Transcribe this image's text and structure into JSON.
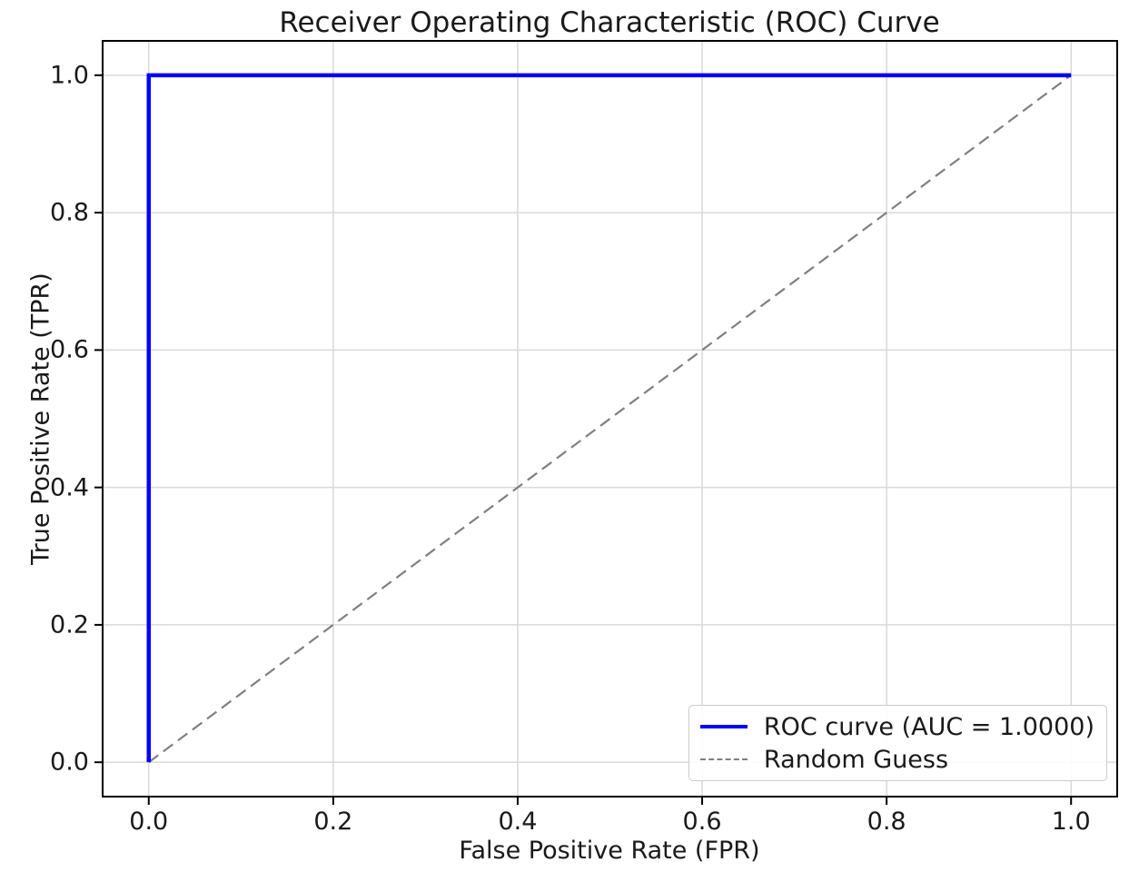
{
  "chart_data": {
    "type": "line",
    "title": "Receiver Operating Characteristic (ROC) Curve",
    "xlabel": "False Positive Rate (FPR)",
    "ylabel": "True Positive Rate (TPR)",
    "xlim": [
      -0.05,
      1.05
    ],
    "ylim": [
      -0.05,
      1.05
    ],
    "x_ticks": [
      "0.0",
      "0.2",
      "0.4",
      "0.6",
      "0.8",
      "1.0"
    ],
    "y_ticks": [
      "0.0",
      "0.2",
      "0.4",
      "0.6",
      "0.8",
      "1.0"
    ],
    "grid": true,
    "grid_color": "#d9d9d9",
    "legend_position": "lower right",
    "auc": "1.0000",
    "series": [
      {
        "name": "ROC curve (AUC = 1.0000)",
        "color": "#0000ff",
        "style": "solid",
        "line_width": 4.5,
        "points": [
          [
            0,
            0
          ],
          [
            0,
            1
          ],
          [
            1,
            1
          ]
        ]
      },
      {
        "name": "Random Guess",
        "color": "#808080",
        "style": "dashed",
        "line_width": 2.2,
        "points": [
          [
            0,
            0
          ],
          [
            1,
            1
          ]
        ]
      }
    ]
  }
}
